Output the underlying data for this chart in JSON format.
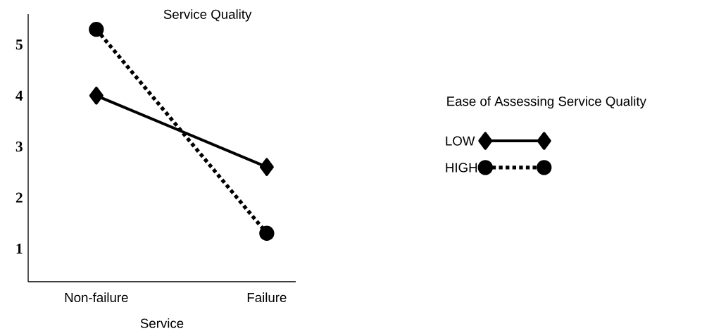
{
  "chart_data": {
    "type": "line",
    "ylabel": "Service Quality",
    "xlabel": "Service",
    "legend_title": "Ease of Assessing Service Quality",
    "categories": [
      "Non-failure",
      "Failure"
    ],
    "series": [
      {
        "name": "LOW",
        "color": "#000000",
        "values": [
          4.0,
          2.6
        ],
        "marker": "diamond",
        "line_style": "solid"
      },
      {
        "name": "HIGH",
        "color": "#000000",
        "values": [
          5.3,
          1.3
        ],
        "marker": "circle",
        "line_style": "dotted"
      }
    ],
    "ylim": [
      0.35,
      5.6
    ],
    "yticks": [
      1,
      2,
      3,
      4,
      5
    ],
    "grid": false,
    "legend": "right"
  }
}
